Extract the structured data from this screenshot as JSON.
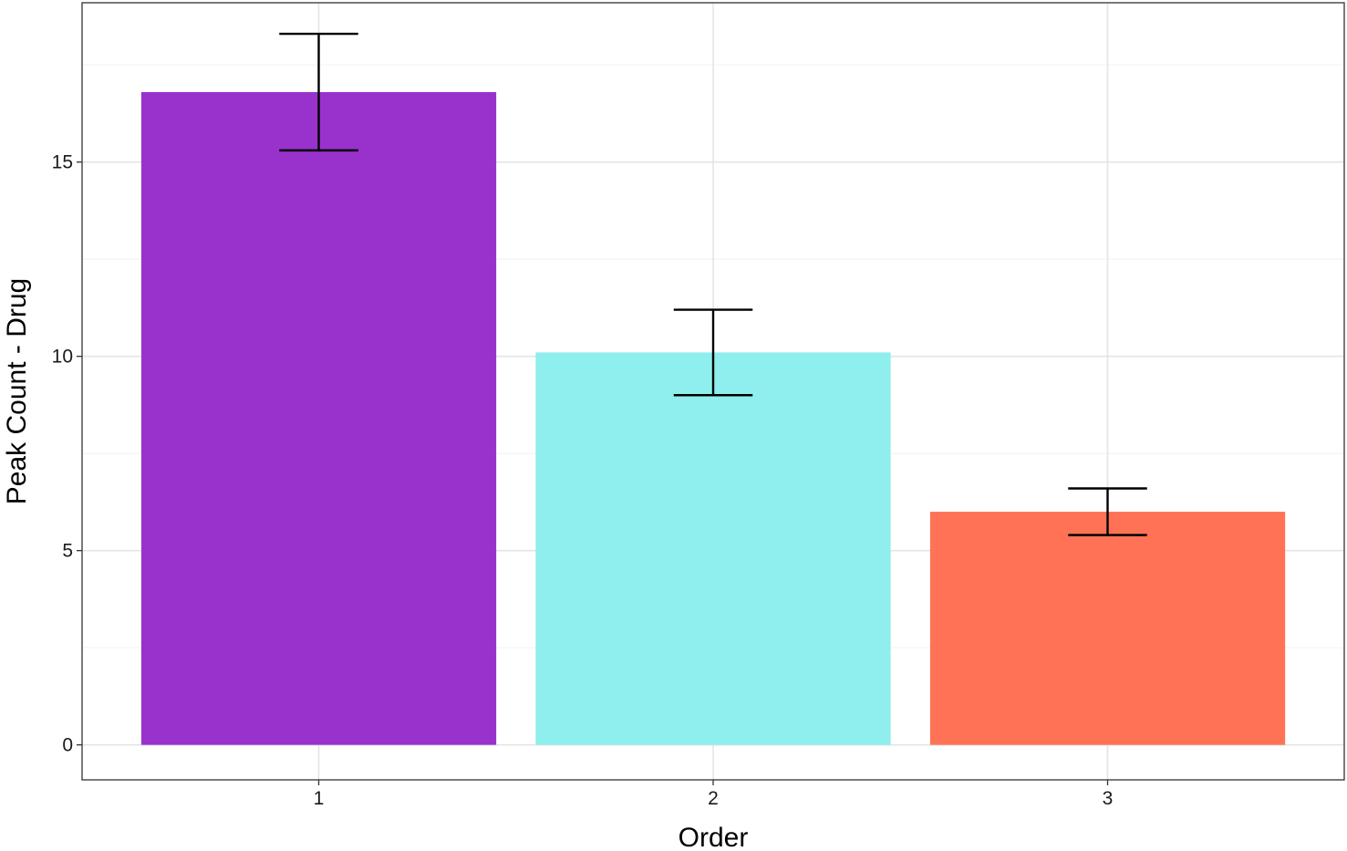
{
  "chart_data": {
    "type": "bar",
    "categories": [
      "1",
      "2",
      "3"
    ],
    "values": [
      16.8,
      10.1,
      6.0
    ],
    "error_bars": [
      {
        "lower": 15.3,
        "upper": 18.3
      },
      {
        "lower": 9.0,
        "upper": 11.2
      },
      {
        "lower": 5.4,
        "upper": 6.6
      }
    ],
    "bar_colors": [
      "#9932cc",
      "#8feeee",
      "#ff7256"
    ],
    "xlabel": "Order",
    "ylabel": "Peak Count - Drug",
    "ylim": [
      -0.9,
      19.1
    ],
    "yticks": [
      0,
      5,
      10,
      15
    ],
    "y_minor_gridlines": [
      2.5,
      7.5,
      12.5,
      17.5
    ],
    "grid": true,
    "legend": "none",
    "panel_border": true
  }
}
